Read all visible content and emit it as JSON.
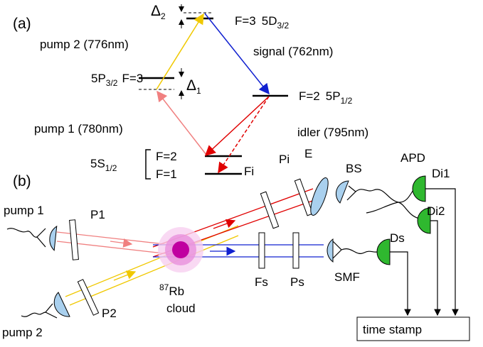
{
  "panel_a": {
    "label": "(a)",
    "delta_2": {
      "symbol": "Δ",
      "sub": "2"
    },
    "delta_1": {
      "symbol": "Δ",
      "sub": "1"
    },
    "level_5d": {
      "f": "F=3",
      "term": "5D",
      "sub": "3/2"
    },
    "level_5p32": {
      "term": "5P",
      "sub": "3/2",
      "f": "F=3"
    },
    "level_5p12": {
      "f": "F=2",
      "term": "5P",
      "sub": "1/2"
    },
    "level_5s": {
      "term": "5S",
      "sub": "1/2",
      "f_upper": "F=2",
      "f_lower": "F=1"
    },
    "pump_2": "pump 2 (776nm)",
    "signal": "signal (762nm)",
    "pump_1": "pump 1 (780nm)",
    "idler": "idler (795nm)"
  },
  "panel_b": {
    "label": "(b)",
    "pump_1": "pump 1",
    "pump_2": "pump 2",
    "p1": "P1",
    "p2": "P2",
    "cloud": {
      "sup": "87",
      "element": "Rb",
      "word": "cloud"
    },
    "fs": "Fs",
    "ps": "Ps",
    "smf": "SMF",
    "ds": "Ds",
    "fi": "Fi",
    "pi": "Pi",
    "e": "E",
    "bs": "BS",
    "apd": "APD",
    "di1": "Di1",
    "di2": "Di2",
    "time_stamp": "time stamp"
  }
}
